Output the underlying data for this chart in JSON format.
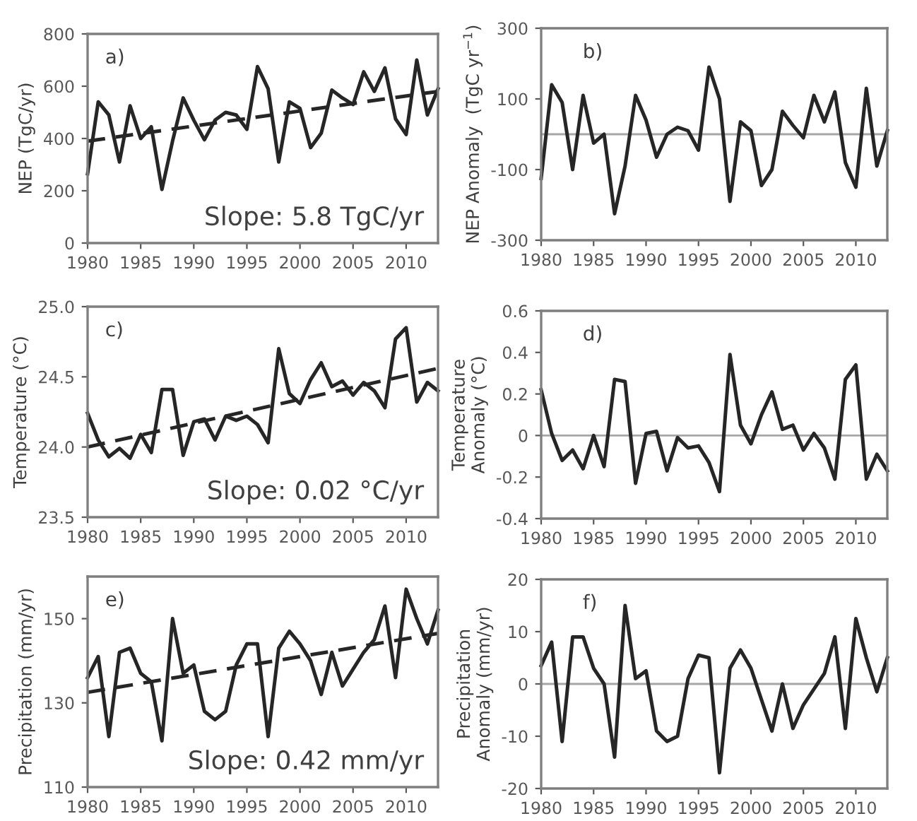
{
  "chart_data": [
    {
      "type": "line",
      "ylabel": "NEP (TgC/yr)",
      "annotations": [
        "a)",
        "Slope: 5.8 TgC/yr"
      ],
      "xlim": [
        1980,
        2013
      ],
      "xticks": [
        1980,
        1985,
        1990,
        1995,
        2000,
        2005,
        2010
      ],
      "ylim": [
        0,
        800
      ],
      "yticks": [
        0,
        200,
        400,
        600,
        800
      ],
      "grid": false,
      "legend": false,
      "x": [
        1980,
        1981,
        1982,
        1983,
        1984,
        1985,
        1986,
        1987,
        1988,
        1989,
        1990,
        1991,
        1992,
        1993,
        1994,
        1995,
        1996,
        1997,
        1998,
        1999,
        2000,
        2001,
        2002,
        2003,
        2004,
        2005,
        2006,
        2007,
        2008,
        2009,
        2010,
        2011,
        2012,
        2013
      ],
      "series": [
        {
          "color": "#262626",
          "line_style": "solid",
          "values": [
            265,
            540,
            490,
            310,
            525,
            400,
            445,
            205,
            390,
            555,
            470,
            395,
            470,
            500,
            490,
            435,
            675,
            590,
            310,
            540,
            515,
            365,
            420,
            585,
            555,
            530,
            655,
            580,
            670,
            475,
            415,
            700,
            490,
            590
          ]
        },
        {
          "color": "#262626",
          "line_style": "dashed",
          "values": [
            390,
            null,
            null,
            null,
            null,
            null,
            null,
            null,
            null,
            null,
            null,
            null,
            null,
            null,
            null,
            null,
            null,
            null,
            null,
            null,
            null,
            null,
            null,
            null,
            null,
            null,
            null,
            null,
            null,
            null,
            null,
            null,
            null,
            580
          ]
        }
      ]
    },
    {
      "type": "line",
      "ylabel": "NEP Anomaly  (TgC yr$^{−1}$)",
      "annotations": [
        "b)"
      ],
      "xlim": [
        1980,
        2013
      ],
      "xticks": [
        1980,
        1985,
        1990,
        1995,
        2000,
        2005,
        2010
      ],
      "ylim": [
        -300,
        300
      ],
      "yticks": [
        -300,
        -100,
        100,
        300
      ],
      "grid": false,
      "legend": false,
      "x": [
        1980,
        1981,
        1982,
        1983,
        1984,
        1985,
        1986,
        1987,
        1988,
        1989,
        1990,
        1991,
        1992,
        1993,
        1994,
        1995,
        1996,
        1997,
        1998,
        1999,
        2000,
        2001,
        2002,
        2003,
        2004,
        2005,
        2006,
        2007,
        2008,
        2009,
        2010,
        2011,
        2012,
        2013
      ],
      "ref_lines": [
        {
          "axis": "y",
          "value": 0,
          "color": "#a6a6a6"
        }
      ],
      "series": [
        {
          "color": "#262626",
          "line_style": "solid",
          "values": [
            -125,
            140,
            90,
            -100,
            110,
            -25,
            0,
            -225,
            -90,
            110,
            40,
            -65,
            0,
            20,
            10,
            -45,
            190,
            100,
            -190,
            35,
            10,
            -145,
            -100,
            65,
            25,
            -10,
            110,
            35,
            120,
            -80,
            -150,
            130,
            -90,
            10
          ]
        }
      ]
    },
    {
      "type": "line",
      "ylabel": "Temperature (°C)",
      "annotations": [
        "c)",
        "Slope: 0.02 °C/yr"
      ],
      "xlim": [
        1980,
        2013
      ],
      "xticks": [
        1980,
        1985,
        1990,
        1995,
        2000,
        2005,
        2010
      ],
      "ylim": [
        23.5,
        25.0
      ],
      "yticks": [
        {
          "value": 23.5,
          "label": "23.5"
        },
        {
          "value": 24.0,
          "label": "24.0"
        },
        {
          "value": 24.5,
          "label": "24.5"
        },
        {
          "value": 25.0,
          "label": "25.0"
        }
      ],
      "grid": false,
      "legend": false,
      "x": [
        1980,
        1981,
        1982,
        1983,
        1984,
        1985,
        1986,
        1987,
        1988,
        1989,
        1990,
        1991,
        1992,
        1993,
        1994,
        1995,
        1996,
        1997,
        1998,
        1999,
        2000,
        2001,
        2002,
        2003,
        2004,
        2005,
        2006,
        2007,
        2008,
        2009,
        2010,
        2011,
        2012,
        2013
      ],
      "series": [
        {
          "color": "#262626",
          "line_style": "solid",
          "values": [
            24.24,
            24.05,
            23.93,
            23.99,
            23.92,
            24.09,
            23.96,
            24.41,
            24.41,
            23.94,
            24.18,
            24.2,
            24.05,
            24.22,
            24.19,
            24.22,
            24.16,
            24.03,
            24.7,
            24.38,
            24.31,
            24.48,
            24.6,
            24.43,
            24.47,
            24.37,
            24.46,
            24.4,
            24.28,
            24.77,
            24.85,
            24.32,
            24.46,
            24.4
          ]
        },
        {
          "color": "#262626",
          "line_style": "dashed",
          "values": [
            24.0,
            null,
            null,
            null,
            null,
            null,
            null,
            null,
            null,
            null,
            null,
            null,
            null,
            null,
            null,
            null,
            null,
            null,
            null,
            null,
            null,
            null,
            null,
            null,
            null,
            null,
            null,
            null,
            null,
            null,
            null,
            null,
            null,
            24.56
          ]
        }
      ]
    },
    {
      "type": "line",
      "ylabel": "Temperature\nAnomaly (°C)",
      "annotations": [
        "d)"
      ],
      "xlim": [
        1980,
        2013
      ],
      "xticks": [
        1980,
        1985,
        1990,
        1995,
        2000,
        2005,
        2010
      ],
      "ylim": [
        -0.4,
        0.6
      ],
      "yticks": [
        -0.4,
        -0.2,
        0,
        0.2,
        0.4,
        0.6
      ],
      "grid": false,
      "legend": false,
      "x": [
        1980,
        1981,
        1982,
        1983,
        1984,
        1985,
        1986,
        1987,
        1988,
        1989,
        1990,
        1991,
        1992,
        1993,
        1994,
        1995,
        1996,
        1997,
        1998,
        1999,
        2000,
        2001,
        2002,
        2003,
        2004,
        2005,
        2006,
        2007,
        2008,
        2009,
        2010,
        2011,
        2012,
        2013
      ],
      "ref_lines": [
        {
          "axis": "y",
          "value": 0,
          "color": "#a6a6a6"
        }
      ],
      "series": [
        {
          "color": "#262626",
          "line_style": "solid",
          "values": [
            0.22,
            0.01,
            -0.12,
            -0.07,
            -0.16,
            0.0,
            -0.15,
            0.27,
            0.26,
            -0.23,
            0.01,
            0.02,
            -0.17,
            -0.01,
            -0.06,
            -0.05,
            -0.13,
            -0.27,
            0.39,
            0.05,
            -0.04,
            0.1,
            0.21,
            0.03,
            0.05,
            -0.07,
            0.01,
            -0.06,
            -0.21,
            0.27,
            0.34,
            -0.21,
            -0.09,
            -0.17
          ]
        }
      ]
    },
    {
      "type": "line",
      "ylabel": "Precipitation (mm/yr)",
      "annotations": [
        "e)",
        "Slope: 0.42 mm/yr"
      ],
      "xlim": [
        1980,
        2013
      ],
      "xticks": [
        1980,
        1985,
        1990,
        1995,
        2000,
        2005,
        2010
      ],
      "ylim": [
        110,
        160
      ],
      "yticks": [
        110,
        130,
        150
      ],
      "grid": false,
      "legend": false,
      "x": [
        1980,
        1981,
        1982,
        1983,
        1984,
        1985,
        1986,
        1987,
        1988,
        1989,
        1990,
        1991,
        1992,
        1993,
        1994,
        1995,
        1996,
        1997,
        1998,
        1999,
        2000,
        2001,
        2002,
        2003,
        2004,
        2005,
        2006,
        2007,
        2008,
        2009,
        2010,
        2011,
        2012,
        2013
      ],
      "series": [
        {
          "color": "#262626",
          "line_style": "solid",
          "values": [
            136,
            141,
            122,
            142,
            143,
            137,
            135,
            121,
            150,
            137,
            139,
            128,
            126,
            128,
            139,
            144,
            144,
            122,
            143,
            147,
            144,
            140,
            132,
            142,
            134,
            138,
            142,
            145,
            153,
            136,
            157,
            150,
            144,
            152
          ]
        },
        {
          "color": "#262626",
          "line_style": "dashed",
          "values": [
            132.5,
            null,
            null,
            null,
            null,
            null,
            null,
            null,
            null,
            null,
            null,
            null,
            null,
            null,
            null,
            null,
            null,
            null,
            null,
            null,
            null,
            null,
            null,
            null,
            null,
            null,
            null,
            null,
            null,
            null,
            null,
            null,
            null,
            146.5
          ]
        }
      ]
    },
    {
      "type": "line",
      "ylabel": "Precipitation\nAnomaly (mm/yr)",
      "annotations": [
        "f)"
      ],
      "xlim": [
        1980,
        2013
      ],
      "xticks": [
        1980,
        1985,
        1990,
        1995,
        2000,
        2005,
        2010
      ],
      "ylim": [
        -20,
        20
      ],
      "yticks": [
        -20,
        -10,
        0,
        10,
        20
      ],
      "grid": false,
      "legend": false,
      "x": [
        1980,
        1981,
        1982,
        1983,
        1984,
        1985,
        1986,
        1987,
        1988,
        1989,
        1990,
        1991,
        1992,
        1993,
        1994,
        1995,
        1996,
        1997,
        1998,
        1999,
        2000,
        2001,
        2002,
        2003,
        2004,
        2005,
        2006,
        2007,
        2008,
        2009,
        2010,
        2011,
        2012,
        2013
      ],
      "ref_lines": [
        {
          "axis": "y",
          "value": 0,
          "color": "#a6a6a6"
        }
      ],
      "series": [
        {
          "color": "#262626",
          "line_style": "solid",
          "values": [
            3.5,
            8,
            -11,
            9,
            9,
            3,
            0,
            -14,
            15,
            1,
            2.5,
            -9,
            -11,
            -10,
            1,
            5.5,
            5,
            -17,
            3,
            6.5,
            3,
            -3,
            -9,
            0,
            -8.5,
            -4,
            -1,
            2,
            9,
            -8.5,
            12.5,
            5,
            -1.5,
            5
          ]
        }
      ]
    }
  ]
}
